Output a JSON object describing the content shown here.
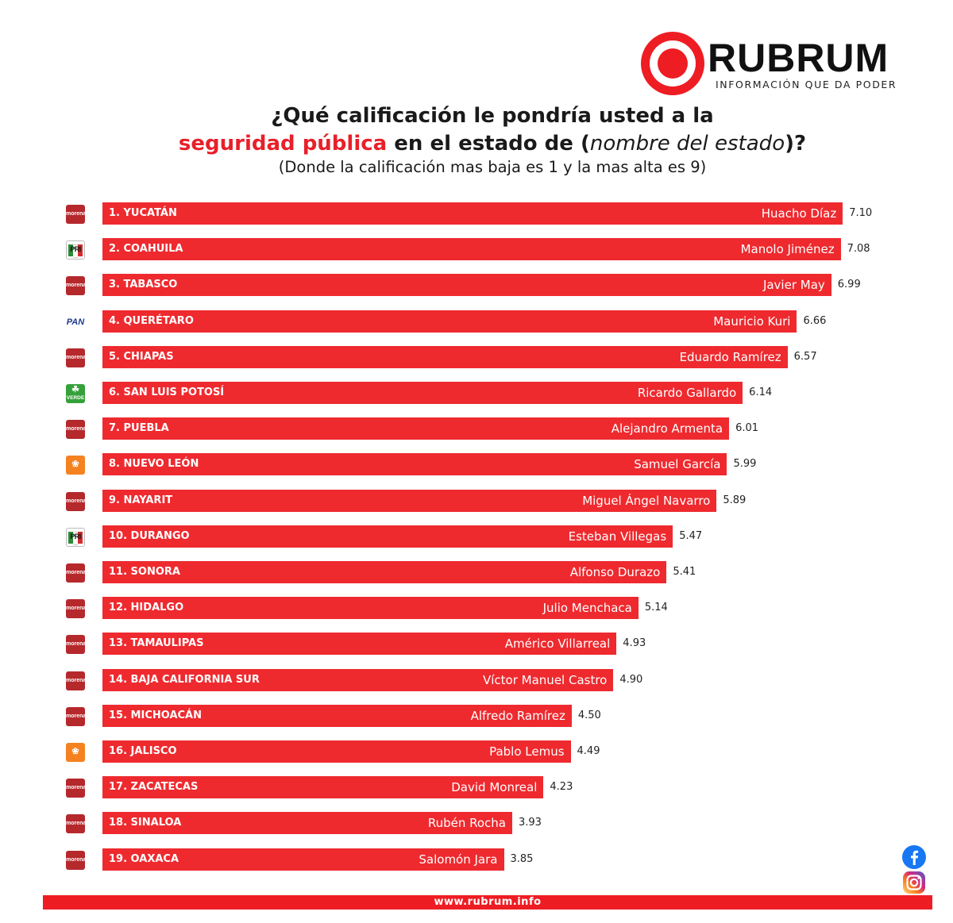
{
  "brand": {
    "name": "RUBRUM",
    "tagline": "INFORMACIÓN QUE DA PODER",
    "accent": "#ee2a2f",
    "website": "www.rubrum.info"
  },
  "chart_data": {
    "type": "bar",
    "orientation": "horizontal",
    "title_line1": "¿Qué calificación le pondría usted a la",
    "title_line2_red": "seguridad pública",
    "title_line2_a": " en el estado de (",
    "title_line2_italic": "nombre del estado",
    "title_line2_b": ")?",
    "subtitle": "(Donde la calificación mas baja es 1 y la mas alta es 9)",
    "xlim": [
      0,
      9
    ],
    "grid": false,
    "legend": "none",
    "bar_color": "#ee2a2f",
    "categories": [
      "1. YUCATÁN",
      "2. COAHUILA",
      "3. TABASCO",
      "4. QUERÉTARO",
      "5. CHIAPAS",
      "6. SAN LUIS POTOSÍ",
      "7. PUEBLA",
      "8. NUEVO LEÓN",
      "9. NAYARIT",
      "10. DURANGO",
      "11. SONORA",
      "12. HIDALGO",
      "13. TAMAULIPAS",
      "14. BAJA CALIFORNIA SUR",
      "15. MICHOACÁN",
      "16. JALISCO",
      "17. ZACATECAS",
      "18. SINALOA",
      "19. OAXACA"
    ],
    "governors": [
      "Huacho Díaz",
      "Manolo Jiménez",
      "Javier May",
      "Mauricio Kuri",
      "Eduardo Ramírez",
      "Ricardo Gallardo",
      "Alejandro Armenta",
      "Samuel García",
      "Miguel Ángel Navarro",
      "Esteban Villegas",
      "Alfonso Durazo",
      "Julio Menchaca",
      "Américo Villarreal",
      "Víctor Manuel Castro",
      "Alfredo Ramírez",
      "Pablo Lemus",
      "David Monreal",
      "Rubén Rocha",
      "Salomón Jara"
    ],
    "parties": [
      "morena",
      "pri",
      "morena",
      "pan",
      "morena",
      "verde",
      "morena",
      "mc",
      "morena",
      "pri",
      "morena",
      "morena",
      "morena",
      "morena",
      "morena",
      "mc",
      "morena",
      "morena",
      "morena"
    ],
    "values": [
      7.1,
      7.08,
      6.99,
      6.66,
      6.57,
      6.14,
      6.01,
      5.99,
      5.89,
      5.47,
      5.41,
      5.14,
      4.93,
      4.9,
      4.5,
      4.49,
      4.23,
      3.93,
      3.85
    ],
    "value_labels": [
      "7.10",
      "7.08",
      "6.99",
      "6.66",
      "6.57",
      "6.14",
      "6.01",
      "5.99",
      "5.89",
      "5.47",
      "5.41",
      "5.14",
      "4.93",
      "4.90",
      "4.50",
      "4.49",
      "4.23",
      "3.93",
      "3.85"
    ]
  },
  "party_icons": {
    "morena": "morena",
    "pri": "PRI",
    "pan": "PAN",
    "verde": "VERDE",
    "mc": "mc-eagle-icon"
  },
  "social": [
    "facebook-icon",
    "instagram-icon"
  ]
}
